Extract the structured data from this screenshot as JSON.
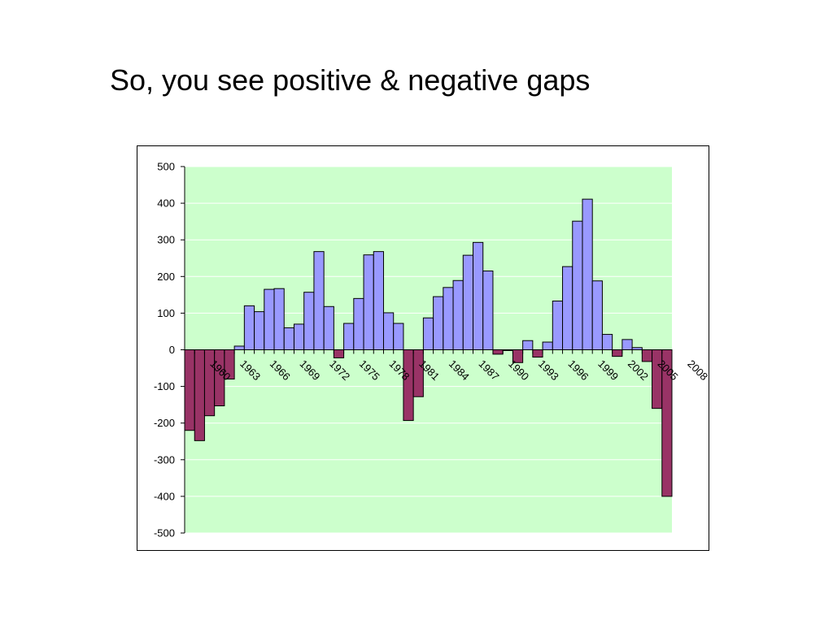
{
  "slide": {
    "title": "So, you see positive & negative gaps"
  },
  "chart_data": {
    "type": "bar",
    "title": "",
    "xlabel": "",
    "ylabel": "",
    "ylim": [
      -500,
      500
    ],
    "yticks": [
      500,
      400,
      300,
      200,
      100,
      0,
      -100,
      -200,
      -300,
      -400,
      -500
    ],
    "x": [
      1958,
      1959,
      1960,
      1961,
      1962,
      1963,
      1964,
      1965,
      1966,
      1967,
      1968,
      1969,
      1970,
      1971,
      1972,
      1973,
      1974,
      1975,
      1976,
      1977,
      1978,
      1979,
      1980,
      1981,
      1982,
      1983,
      1984,
      1985,
      1986,
      1987,
      1988,
      1989,
      1990,
      1991,
      1992,
      1993,
      1994,
      1995,
      1996,
      1997,
      1998,
      1999,
      2000,
      2001,
      2002,
      2003,
      2004,
      2005,
      2006
    ],
    "values": [
      -220,
      -248,
      -180,
      -153,
      -80,
      10,
      120,
      104,
      165,
      167,
      60,
      70,
      157,
      268,
      118,
      -22,
      72,
      140,
      259,
      268,
      101,
      72,
      -193,
      -128,
      87,
      145,
      170,
      189,
      258,
      293,
      215,
      -12,
      -2,
      -35,
      25,
      -20,
      21,
      133,
      227,
      351,
      411,
      188,
      42,
      -18,
      28,
      6,
      -32,
      -160,
      -400
    ],
    "xtick_labels": [
      "1960",
      "1963",
      "1966",
      "1969",
      "1972",
      "1975",
      "1978",
      "1981",
      "1984",
      "1987",
      "1990",
      "1993",
      "1996",
      "1999",
      "2002",
      "2005",
      "2008"
    ],
    "grid": true,
    "legend": "none",
    "colors": {
      "positive": "#9999ff",
      "negative": "#993366",
      "plot_background": "#ccffcc",
      "gridline": "#ffffff",
      "bar_outline": "#000000"
    }
  }
}
